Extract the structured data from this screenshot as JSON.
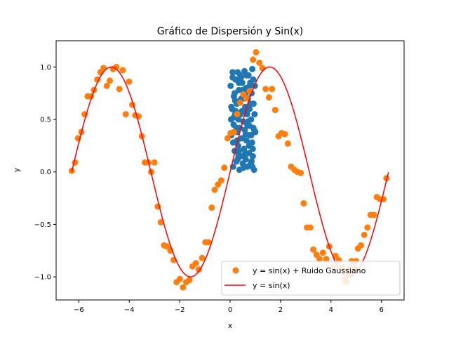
{
  "chart_data": {
    "type": "scatter",
    "title": "Gráfico de Dispersión y Sin(x)",
    "xlabel": "x",
    "ylabel": "y",
    "xlim": [
      -6.9,
      6.9
    ],
    "ylim": [
      -1.22,
      1.25
    ],
    "xticks": [
      -6,
      -4,
      -2,
      0,
      2,
      4,
      6
    ],
    "yticks": [
      -1.0,
      -0.5,
      0.0,
      0.5,
      1.0
    ],
    "xtick_labels": [
      "−6",
      "−4",
      "−2",
      "0",
      "2",
      "4",
      "6"
    ],
    "ytick_labels": [
      "−1.0",
      "−0.5",
      "0.0",
      "0.5",
      "1.0"
    ],
    "grid": false,
    "legend_position": "lower-right",
    "series": [
      {
        "kind": "scatter",
        "color": "#1f77b4",
        "x": [
          0.02,
          0.05,
          0.08,
          0.1,
          0.12,
          0.14,
          0.15,
          0.18,
          0.2,
          0.22,
          0.25,
          0.27,
          0.28,
          0.3,
          0.32,
          0.33,
          0.35,
          0.37,
          0.38,
          0.4,
          0.42,
          0.43,
          0.45,
          0.47,
          0.48,
          0.5,
          0.52,
          0.53,
          0.55,
          0.57,
          0.58,
          0.6,
          0.62,
          0.63,
          0.65,
          0.67,
          0.68,
          0.7,
          0.72,
          0.73,
          0.75,
          0.77,
          0.78,
          0.8,
          0.82,
          0.83,
          0.85,
          0.87,
          0.88,
          0.9,
          0.92,
          0.93,
          0.95,
          0.97,
          0.98,
          1.0,
          0.05,
          0.12,
          0.18,
          0.25,
          0.3,
          0.35,
          0.42,
          0.48,
          0.55,
          0.6,
          0.65,
          0.7,
          0.75,
          0.8,
          0.88,
          0.95,
          0.1,
          0.22,
          0.35,
          0.5,
          0.62,
          0.72,
          0.85,
          0.92,
          0.15,
          0.28,
          0.45,
          0.58,
          0.68,
          0.78,
          0.9,
          0.2,
          0.4,
          0.52,
          0.66,
          0.84,
          0.04,
          0.33,
          0.6,
          0.76
        ],
        "y": [
          0.82,
          0.35,
          0.6,
          0.9,
          0.05,
          0.45,
          0.72,
          0.2,
          0.55,
          0.88,
          0.1,
          0.65,
          0.38,
          0.95,
          0.25,
          0.5,
          0.78,
          0.02,
          0.42,
          0.68,
          0.15,
          0.9,
          0.32,
          0.58,
          0.85,
          0.08,
          0.48,
          0.74,
          0.22,
          0.96,
          0.4,
          0.62,
          0.12,
          0.8,
          0.3,
          0.55,
          0.05,
          0.7,
          0.45,
          0.92,
          0.18,
          0.6,
          0.35,
          0.85,
          0.08,
          0.5,
          0.75,
          0.28,
          0.98,
          0.15,
          0.42,
          0.65,
          0.02,
          0.55,
          0.82,
          0.38,
          0.62,
          0.28,
          0.75,
          0.42,
          0.12,
          0.85,
          0.55,
          0.32,
          0.7,
          0.18,
          0.92,
          0.48,
          0.25,
          0.65,
          0.05,
          0.4,
          0.95,
          0.58,
          0.2,
          0.78,
          0.36,
          0.6,
          0.1,
          0.88,
          0.52,
          0.3,
          0.7,
          0.15,
          0.45,
          0.82,
          0.22,
          0.68,
          0.92,
          0.04,
          0.58,
          0.35,
          0.5,
          0.16,
          0.75,
          0.44
        ]
      },
      {
        "kind": "scatter",
        "name": "y = sin(x) + Ruido Gaussiano",
        "color": "#ff7f0e",
        "x": [
          -6.28,
          -6.15,
          -6.03,
          -5.9,
          -5.77,
          -5.65,
          -5.52,
          -5.4,
          -5.27,
          -5.14,
          -5.02,
          -4.89,
          -4.77,
          -4.64,
          -4.51,
          -4.39,
          -4.26,
          -4.14,
          -4.01,
          -3.88,
          -3.76,
          -3.63,
          -3.5,
          -3.38,
          -3.25,
          -3.13,
          -3.0,
          -2.87,
          -2.75,
          -2.62,
          -2.5,
          -2.37,
          -2.24,
          -2.12,
          -1.99,
          -1.87,
          -1.74,
          -1.61,
          -1.49,
          -1.36,
          -1.24,
          -1.11,
          -0.98,
          -0.86,
          -0.73,
          -0.61,
          -0.48,
          -0.35,
          -0.23,
          -0.1,
          0.02,
          0.15,
          0.28,
          0.4,
          0.53,
          0.65,
          0.78,
          0.91,
          1.03,
          1.16,
          1.28,
          1.41,
          1.54,
          1.66,
          1.79,
          1.92,
          2.04,
          2.17,
          2.29,
          2.42,
          2.55,
          2.67,
          2.8,
          2.92,
          3.05,
          3.18,
          3.3,
          3.43,
          3.55,
          3.68,
          3.81,
          3.93,
          4.06,
          4.18,
          4.31,
          4.44,
          4.56,
          4.69,
          4.82,
          4.94,
          5.07,
          5.19,
          5.32,
          5.45,
          5.57,
          5.7,
          5.82,
          5.95,
          6.08,
          6.2,
          4.6,
          4.75,
          4.88,
          5.0
        ],
        "y": [
          0.01,
          0.09,
          0.32,
          0.38,
          0.55,
          0.72,
          0.72,
          0.78,
          0.88,
          0.95,
          0.99,
          0.82,
          0.87,
          0.98,
          1.0,
          0.79,
          0.97,
          0.55,
          0.86,
          0.64,
          0.54,
          0.53,
          0.34,
          0.09,
          0.09,
          0.0,
          0.09,
          -0.33,
          -0.48,
          -0.7,
          -0.71,
          -0.75,
          -0.84,
          -1.05,
          -1.02,
          -1.1,
          -1.05,
          -1.03,
          -0.9,
          -0.87,
          -0.93,
          -0.82,
          -0.67,
          -0.67,
          -0.34,
          -0.17,
          -0.12,
          -0.08,
          0.04,
          0.32,
          0.37,
          0.38,
          0.55,
          0.66,
          0.74,
          0.7,
          0.77,
          1.07,
          1.14,
          1.04,
          0.99,
          0.79,
          0.71,
          0.79,
          0.59,
          0.34,
          0.37,
          0.36,
          0.27,
          0.05,
          0.02,
          0.0,
          -0.01,
          -0.3,
          -0.53,
          -0.53,
          -0.74,
          -0.79,
          -0.83,
          -0.77,
          -0.83,
          -0.71,
          -0.91,
          -0.8,
          -0.84,
          -0.91,
          -1.03,
          -0.94,
          -0.85,
          -0.92,
          -0.73,
          -0.7,
          -0.6,
          -0.53,
          -0.41,
          -0.41,
          -0.24,
          -0.26,
          -0.26,
          -0.06,
          -1.05,
          -0.98,
          -0.86,
          -0.85
        ]
      },
      {
        "kind": "line",
        "name": "y = sin(x)",
        "color": "#ff0000",
        "function": "sin",
        "x_range": [
          -6.28,
          6.28
        ],
        "samples": 200
      }
    ]
  }
}
